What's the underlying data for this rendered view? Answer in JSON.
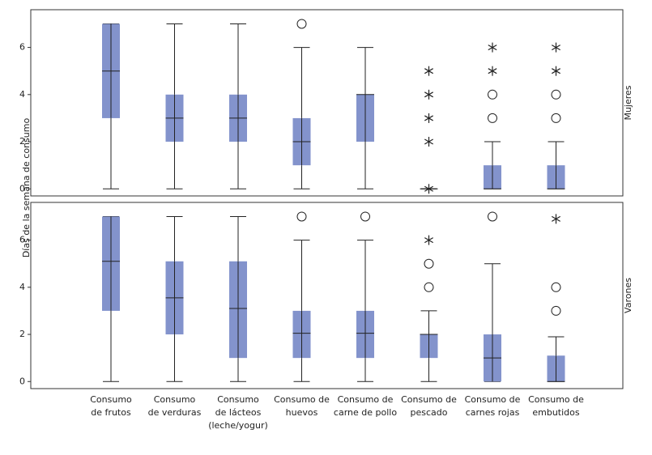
{
  "chart_data": {
    "type": "box",
    "ylabel": "Días de la semana de consumo",
    "ylim": [
      -0.3,
      7.6
    ],
    "yticks": [
      0,
      2,
      4,
      6
    ],
    "color": "#8393cc",
    "categories": [
      [
        "Consumo",
        "de frutos"
      ],
      [
        "Consumo",
        "de verduras"
      ],
      [
        "Consumo",
        "de lácteos",
        "(leche/yogur)"
      ],
      [
        "Consumo de",
        "huevos"
      ],
      [
        "Consumo de",
        "carne de pollo"
      ],
      [
        "Consumo de",
        "pescado"
      ],
      [
        "Consumo de",
        "carnes rojas"
      ],
      [
        "Consumo de",
        "embutidos"
      ]
    ],
    "panels": [
      {
        "label": "Mujeres",
        "boxes": [
          {
            "whislo": 0,
            "q1": 3,
            "med": 5,
            "q3": 7,
            "whishi": 7
          },
          {
            "whislo": 0,
            "q1": 2,
            "med": 3,
            "q3": 4,
            "whishi": 7
          },
          {
            "whislo": 0,
            "q1": 2,
            "med": 3,
            "q3": 4,
            "whishi": 7
          },
          {
            "whislo": 0,
            "q1": 1,
            "med": 2,
            "q3": 3,
            "whishi": 6,
            "outliers": [
              7
            ]
          },
          {
            "whislo": 0,
            "q1": 2,
            "med": 4,
            "q3": 4,
            "whishi": 6
          },
          {
            "whislo": 0,
            "q1": 0,
            "med": 0,
            "q3": 0,
            "whishi": 0,
            "extremes": [
              0,
              2,
              3,
              4,
              5
            ]
          },
          {
            "whislo": 0,
            "q1": 0,
            "med": 0,
            "q3": 1,
            "whishi": 2,
            "outliers": [
              3,
              4
            ],
            "extremes": [
              5,
              6
            ]
          },
          {
            "whislo": 0,
            "q1": 0,
            "med": 0,
            "q3": 1,
            "whishi": 2,
            "outliers": [
              3,
              4
            ],
            "extremes": [
              5,
              6
            ]
          }
        ]
      },
      {
        "label": "Varones",
        "boxes": [
          {
            "whislo": 0,
            "q1": 3,
            "med": 5.1,
            "q3": 7,
            "whishi": 7
          },
          {
            "whislo": 0,
            "q1": 2,
            "med": 3.55,
            "q3": 5.1,
            "whishi": 7
          },
          {
            "whislo": 0,
            "q1": 1,
            "med": 3.1,
            "q3": 5.1,
            "whishi": 7
          },
          {
            "whislo": 0,
            "q1": 1,
            "med": 2.05,
            "q3": 3,
            "whishi": 6,
            "outliers": [
              7
            ]
          },
          {
            "whislo": 0,
            "q1": 1,
            "med": 2.05,
            "q3": 3,
            "whishi": 6,
            "outliers": [
              7
            ]
          },
          {
            "whislo": 0,
            "q1": 1,
            "med": 2,
            "q3": 2,
            "whishi": 3,
            "outliers": [
              4,
              5
            ],
            "extremes": [
              6
            ]
          },
          {
            "whislo": 0,
            "q1": 0,
            "med": 1,
            "q3": 2,
            "whishi": 5,
            "outliers": [
              7
            ]
          },
          {
            "whislo": 0,
            "q1": 0,
            "med": 0,
            "q3": 1.1,
            "whishi": 1.9,
            "outliers": [
              3,
              4
            ],
            "extremes": [
              6.9
            ]
          }
        ]
      }
    ]
  }
}
